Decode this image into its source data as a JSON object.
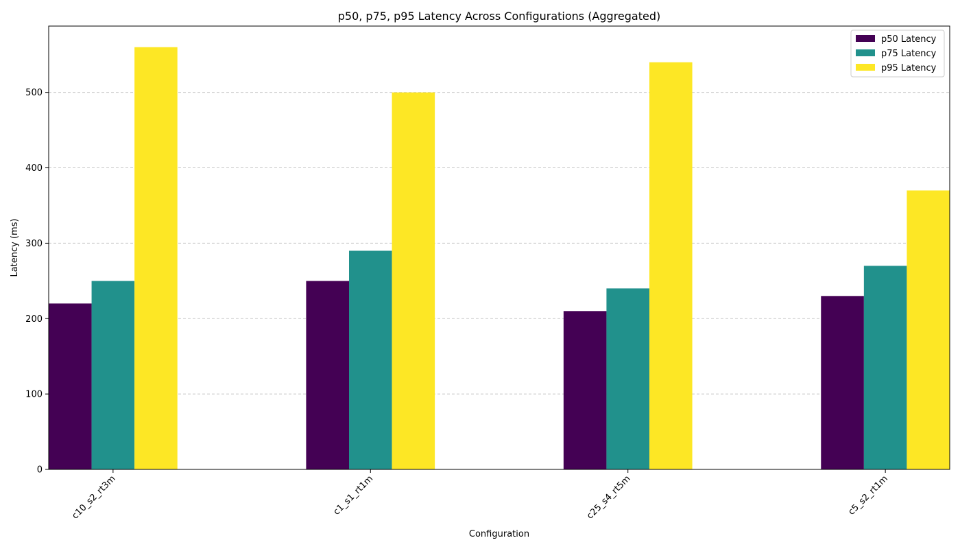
{
  "chart_data": {
    "type": "bar",
    "title": "p50, p75, p95 Latency Across Configurations (Aggregated)",
    "xlabel": "Configuration",
    "ylabel": "Latency (ms)",
    "categories": [
      "c10_s2_rt3m",
      "c1_s1_rt1m",
      "c25_s4_rt5m",
      "c5_s2_rt1m"
    ],
    "series": [
      {
        "name": "p50 Latency",
        "color": "#440154",
        "values": [
          220,
          250,
          210,
          230
        ]
      },
      {
        "name": "p75 Latency",
        "color": "#21918c",
        "values": [
          250,
          290,
          240,
          270
        ]
      },
      {
        "name": "p95 Latency",
        "color": "#fde725",
        "values": [
          560,
          500,
          540,
          370
        ]
      }
    ],
    "ylim": [
      0,
      588
    ],
    "yticks": [
      0,
      100,
      200,
      300,
      400,
      500
    ],
    "grid": "y-dashed",
    "legend_position": "top-right"
  }
}
